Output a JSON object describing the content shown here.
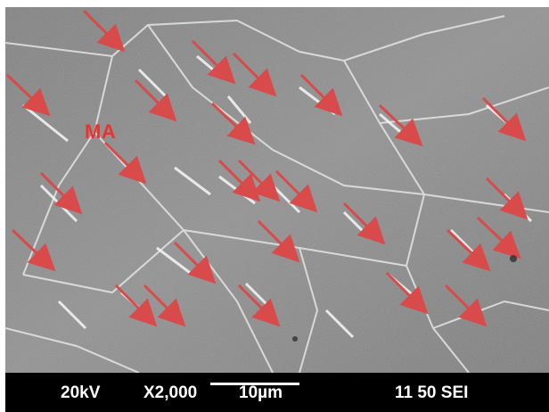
{
  "image": {
    "description_role": "SEM micrograph",
    "annotation_label": "MA",
    "arrow_color": "#d94a4a",
    "label_color": "#e8342e"
  },
  "databar": {
    "voltage": "20kV",
    "magnification": "X2,000",
    "scale": "10µm",
    "code": "11 50 SEI"
  }
}
